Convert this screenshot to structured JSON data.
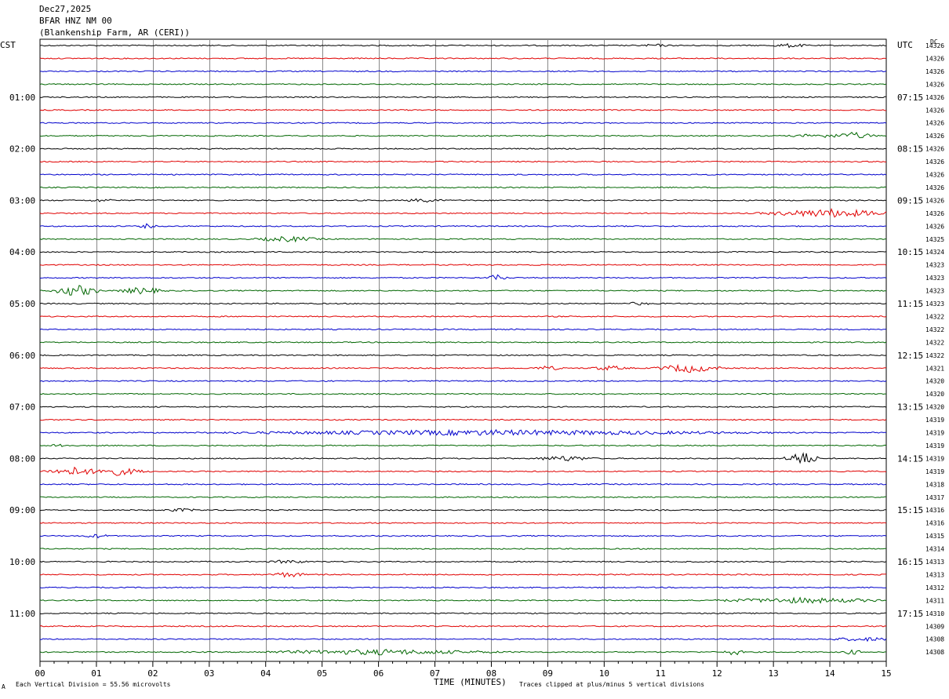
{
  "header": {
    "date": "Dec27,2025",
    "station": "BFAR HNZ NM 00",
    "location": "(Blankenship Farm, AR (CERI))"
  },
  "left_label": "CST",
  "right_label": "UTC",
  "dc_label": "DC",
  "xlabel": "TIME (MINUTES)",
  "footer": {
    "scale": "Each Vertical Division =   55.56 microvolts",
    "clip": "Traces clipped at plus/minus 5 vertical divisions",
    "corner_mark": "A"
  },
  "colors": {
    "trace_cycle": [
      "#000000",
      "#e00000",
      "#0000cc",
      "#006600"
    ],
    "grid": "#888888",
    "frame": "#000000"
  },
  "chart_data": {
    "type": "line",
    "x_unit": "minutes",
    "xlim": [
      0,
      15
    ],
    "x_ticks": [
      "00",
      "01",
      "02",
      "03",
      "04",
      "05",
      "06",
      "07",
      "08",
      "09",
      "10",
      "11",
      "12",
      "13",
      "14",
      "15"
    ],
    "trace_count": 48,
    "minutes_per_trace": 15,
    "left_time_labels": [
      {
        "trace": 4,
        "text": "01:00"
      },
      {
        "trace": 8,
        "text": "02:00"
      },
      {
        "trace": 12,
        "text": "03:00"
      },
      {
        "trace": 16,
        "text": "04:00"
      },
      {
        "trace": 20,
        "text": "05:00"
      },
      {
        "trace": 24,
        "text": "06:00"
      },
      {
        "trace": 28,
        "text": "07:00"
      },
      {
        "trace": 32,
        "text": "08:00"
      },
      {
        "trace": 36,
        "text": "09:00"
      },
      {
        "trace": 40,
        "text": "10:00"
      },
      {
        "trace": 44,
        "text": "11:00"
      }
    ],
    "right_time_labels": [
      {
        "trace": 4,
        "text": "07:15"
      },
      {
        "trace": 8,
        "text": "08:15"
      },
      {
        "trace": 12,
        "text": "09:15"
      },
      {
        "trace": 16,
        "text": "10:15"
      },
      {
        "trace": 20,
        "text": "11:15"
      },
      {
        "trace": 24,
        "text": "12:15"
      },
      {
        "trace": 28,
        "text": "13:15"
      },
      {
        "trace": 32,
        "text": "14:15"
      },
      {
        "trace": 36,
        "text": "15:15"
      },
      {
        "trace": 40,
        "text": "16:15"
      },
      {
        "trace": 44,
        "text": "17:15"
      }
    ],
    "dc_values": [
      "14326",
      "14326",
      "14326",
      "14326",
      "14326",
      "14326",
      "14326",
      "14326",
      "14326",
      "14326",
      "14326",
      "14326",
      "14326",
      "14326",
      "14326",
      "14325",
      "14324",
      "14323",
      "14323",
      "14323",
      "14323",
      "14322",
      "14322",
      "14322",
      "14322",
      "14321",
      "14320",
      "14320",
      "14320",
      "14319",
      "14319",
      "14319",
      "14319",
      "14319",
      "14318",
      "14317",
      "14316",
      "14316",
      "14315",
      "14314",
      "14313",
      "14313",
      "14312",
      "14311",
      "14310",
      "14309",
      "14308",
      "14308"
    ],
    "events": [
      {
        "trace": 0,
        "minute": 13.3,
        "amp": 2,
        "width": 0.4
      },
      {
        "trace": 0,
        "minute": 10.9,
        "amp": 1.5,
        "width": 0.3
      },
      {
        "trace": 7,
        "minute": 14.4,
        "amp": 4,
        "width": 0.5
      },
      {
        "trace": 7,
        "minute": 13.8,
        "amp": 2,
        "width": 0.6
      },
      {
        "trace": 12,
        "minute": 6.8,
        "amp": 2,
        "width": 0.4
      },
      {
        "trace": 12,
        "minute": 1.1,
        "amp": 1.5,
        "width": 0.3
      },
      {
        "trace": 13,
        "minute": 14.0,
        "amp": 5,
        "width": 1.4
      },
      {
        "trace": 14,
        "minute": 1.9,
        "amp": 2.5,
        "width": 0.2
      },
      {
        "trace": 15,
        "minute": 4.4,
        "amp": 3,
        "width": 0.7
      },
      {
        "trace": 18,
        "minute": 8.1,
        "amp": 4,
        "width": 0.2
      },
      {
        "trace": 19,
        "minute": 0.65,
        "amp": 7,
        "width": 0.5
      },
      {
        "trace": 19,
        "minute": 1.8,
        "amp": 4,
        "width": 0.5
      },
      {
        "trace": 20,
        "minute": 10.6,
        "amp": 1.5,
        "width": 0.3
      },
      {
        "trace": 25,
        "minute": 11.5,
        "amp": 5,
        "width": 0.7
      },
      {
        "trace": 25,
        "minute": 9.0,
        "amp": 2.5,
        "width": 0.3
      },
      {
        "trace": 25,
        "minute": 10.1,
        "amp": 2.5,
        "width": 0.4
      },
      {
        "trace": 30,
        "minute": 8.0,
        "amp": 3,
        "width": 5.5
      },
      {
        "trace": 31,
        "minute": 0.35,
        "amp": 5,
        "width": 0.15
      },
      {
        "trace": 32,
        "minute": 13.5,
        "amp": 9,
        "width": 0.35
      },
      {
        "trace": 32,
        "minute": 9.3,
        "amp": 3,
        "width": 0.6
      },
      {
        "trace": 33,
        "minute": 0.6,
        "amp": 5,
        "width": 0.6
      },
      {
        "trace": 33,
        "minute": 1.3,
        "amp": 5,
        "width": 0.7
      },
      {
        "trace": 36,
        "minute": 2.5,
        "amp": 1.5,
        "width": 0.4
      },
      {
        "trace": 38,
        "minute": 1.0,
        "amp": 2,
        "width": 0.3
      },
      {
        "trace": 40,
        "minute": 4.4,
        "amp": 2,
        "width": 0.4
      },
      {
        "trace": 41,
        "minute": 4.4,
        "amp": 3,
        "width": 0.4
      },
      {
        "trace": 43,
        "minute": 13.5,
        "amp": 3,
        "width": 1.8
      },
      {
        "trace": 46,
        "minute": 14.6,
        "amp": 2,
        "width": 0.8
      },
      {
        "trace": 47,
        "minute": 6.0,
        "amp": 3,
        "width": 2.5
      },
      {
        "trace": 47,
        "minute": 12.3,
        "amp": 4,
        "width": 0.2
      },
      {
        "trace": 47,
        "minute": 14.4,
        "amp": 3,
        "width": 0.2
      }
    ]
  }
}
